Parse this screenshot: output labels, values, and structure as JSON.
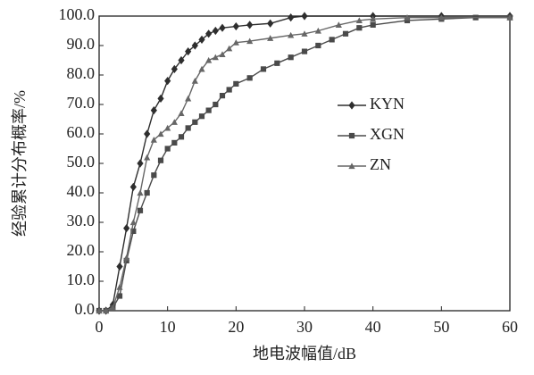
{
  "chart_data": {
    "type": "line",
    "xlabel": "地电波幅值/dB",
    "ylabel": "经验累计分布概率/%",
    "xlim": [
      0,
      60
    ],
    "xticks": [
      0,
      10,
      20,
      30,
      40,
      50,
      60
    ],
    "ylim": [
      0,
      100
    ],
    "yticks": [
      {
        "value": 0,
        "label": "0.0"
      },
      {
        "value": 10,
        "label": "10.0"
      },
      {
        "value": 20,
        "label": "20.0"
      },
      {
        "value": 30,
        "label": "30.0"
      },
      {
        "value": 40,
        "label": "40.0"
      },
      {
        "value": 50,
        "label": "50.0"
      },
      {
        "value": 60,
        "label": "60.0"
      },
      {
        "value": 70,
        "label": "70.0"
      },
      {
        "value": 80,
        "label": "80.0"
      },
      {
        "value": 90,
        "label": "90.0"
      },
      {
        "value": 100,
        "label": "100.0"
      }
    ],
    "legend": "right",
    "series": [
      {
        "name": "KYN",
        "color": "#2e2e2e",
        "marker": "diamond",
        "x": [
          0,
          1,
          2,
          3,
          4,
          5,
          6,
          7,
          8,
          9,
          10,
          11,
          12,
          13,
          14,
          15,
          16,
          17,
          18,
          20,
          22,
          25,
          28,
          30,
          40,
          50,
          60
        ],
        "values": [
          0,
          0,
          2,
          15,
          28,
          42,
          50,
          60,
          68,
          72,
          78,
          82,
          85,
          88,
          90,
          92,
          94,
          95,
          96,
          96.5,
          97,
          97.5,
          99.5,
          100,
          100,
          100,
          100
        ]
      },
      {
        "name": "XGN",
        "color": "#4a4a4a",
        "marker": "square",
        "x": [
          0,
          1,
          2,
          3,
          4,
          5,
          6,
          7,
          8,
          9,
          10,
          11,
          12,
          13,
          14,
          15,
          16,
          17,
          18,
          19,
          20,
          22,
          24,
          26,
          28,
          30,
          32,
          34,
          36,
          38,
          40,
          45,
          50,
          55,
          60
        ],
        "values": [
          0,
          0,
          1,
          5,
          17,
          27,
          34,
          40,
          46,
          51,
          55,
          57,
          59,
          62,
          64,
          66,
          68,
          70,
          73,
          75,
          77,
          79,
          82,
          84,
          86,
          88,
          90,
          92,
          94,
          96,
          97,
          98.5,
          99,
          99.5,
          99.5
        ]
      },
      {
        "name": "ZN",
        "color": "#666666",
        "marker": "triangle",
        "x": [
          0,
          1,
          2,
          3,
          4,
          5,
          6,
          7,
          8,
          9,
          10,
          11,
          12,
          13,
          14,
          15,
          16,
          17,
          18,
          19,
          20,
          22,
          25,
          28,
          30,
          32,
          35,
          38,
          40,
          45,
          50,
          60
        ],
        "values": [
          0,
          0,
          1,
          8,
          18,
          30,
          40,
          52,
          58,
          60,
          62,
          64,
          67,
          72,
          78,
          82,
          85,
          86,
          87,
          89,
          91,
          91.5,
          92.5,
          93.5,
          94,
          95,
          97,
          98.5,
          99,
          99.5,
          99.5,
          99.5
        ]
      }
    ]
  }
}
